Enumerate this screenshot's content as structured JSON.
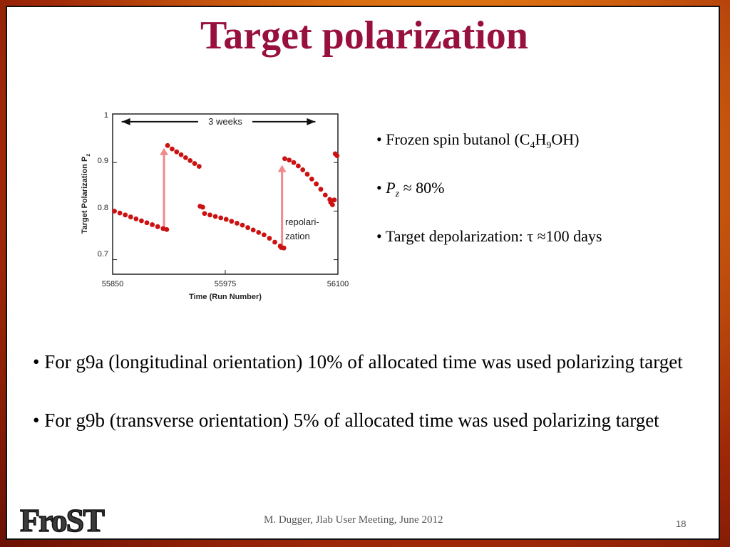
{
  "slide": {
    "title": "Target polarization",
    "side_bullets": [
      {
        "prefix": "• Frozen spin butanol (C",
        "s1": "4",
        "m1": "H",
        "s2": "9",
        "suffix": "OH)"
      },
      {
        "bullet": "• ",
        "symbol": "P",
        "sub": "z",
        "rest": " ≈ 80%"
      },
      {
        "text": "• Target depolarization: τ ≈100 days"
      }
    ],
    "main_bullets": [
      "• For g9a (longitudinal orientation) 10% of allocated time was used polarizing target",
      "• For g9b (transverse orientation) 5% of allocated time was used polarizing target"
    ],
    "footer": "M. Dugger, Jlab User Meeting, June 2012",
    "page_number": "18",
    "logo_text": "FroST",
    "colors": {
      "title": "#98103e",
      "data": "#cc1111",
      "arrow": "#f08a8a"
    }
  },
  "chart_data": {
    "type": "scatter",
    "xlabel": "Time (Run Number)",
    "ylabel": "Target Polarization P",
    "ylabel_sub": "z",
    "xlim": [
      55850,
      56100
    ],
    "ylim": [
      0.67,
      1.0
    ],
    "x_ticks": [
      "55850",
      "55975",
      "56100"
    ],
    "y_ticks": [
      "0.7",
      "0.8",
      "0.9",
      "1"
    ],
    "annotations": {
      "span_label": "3 weeks",
      "repol_line1": "repolari-",
      "repol_line2": "zation"
    },
    "series": [
      {
        "x": [
          55852,
          55858,
          55864,
          55870,
          55876,
          55882,
          55888,
          55894,
          55900,
          55906,
          55910
        ],
        "y": [
          0.8,
          0.796,
          0.792,
          0.788,
          0.784,
          0.78,
          0.776,
          0.772,
          0.768,
          0.764,
          0.762
        ]
      },
      {
        "x": [
          55911,
          55916,
          55921,
          55926,
          55931,
          55936,
          55941,
          55946
        ],
        "y": [
          0.935,
          0.928,
          0.922,
          0.916,
          0.91,
          0.904,
          0.898,
          0.892
        ]
      },
      {
        "x": [
          55947,
          55950
        ],
        "y": [
          0.81,
          0.808
        ]
      },
      {
        "x": [
          55952,
          55958,
          55964,
          55970,
          55976,
          55982,
          55988,
          55994,
          56000,
          56006,
          56012,
          56018,
          56024,
          56030,
          56036
        ],
        "y": [
          0.795,
          0.792,
          0.789,
          0.786,
          0.783,
          0.779,
          0.775,
          0.771,
          0.766,
          0.761,
          0.756,
          0.751,
          0.744,
          0.736,
          0.728
        ]
      },
      {
        "x": [
          56037,
          56040
        ],
        "y": [
          0.725,
          0.724
        ]
      },
      {
        "x": [
          56041,
          56046,
          56051,
          56056,
          56061,
          56066,
          56071,
          56076,
          56081,
          56086,
          56091
        ],
        "y": [
          0.908,
          0.905,
          0.9,
          0.893,
          0.885,
          0.876,
          0.866,
          0.856,
          0.845,
          0.833,
          0.824
        ]
      },
      {
        "x": [
          56092,
          56094,
          56096
        ],
        "y": [
          0.818,
          0.813,
          0.823
        ]
      },
      {
        "x": [
          56097,
          56099
        ],
        "y": [
          0.918,
          0.914
        ]
      }
    ],
    "repolarization_arrows": [
      {
        "x": 55907,
        "y_from": 0.765,
        "y_to": 0.93
      },
      {
        "x": 56038,
        "y_from": 0.728,
        "y_to": 0.895
      }
    ],
    "span_arrow": {
      "x_from": 55860,
      "x_to": 56075,
      "y": 0.984
    },
    "grid": false
  }
}
